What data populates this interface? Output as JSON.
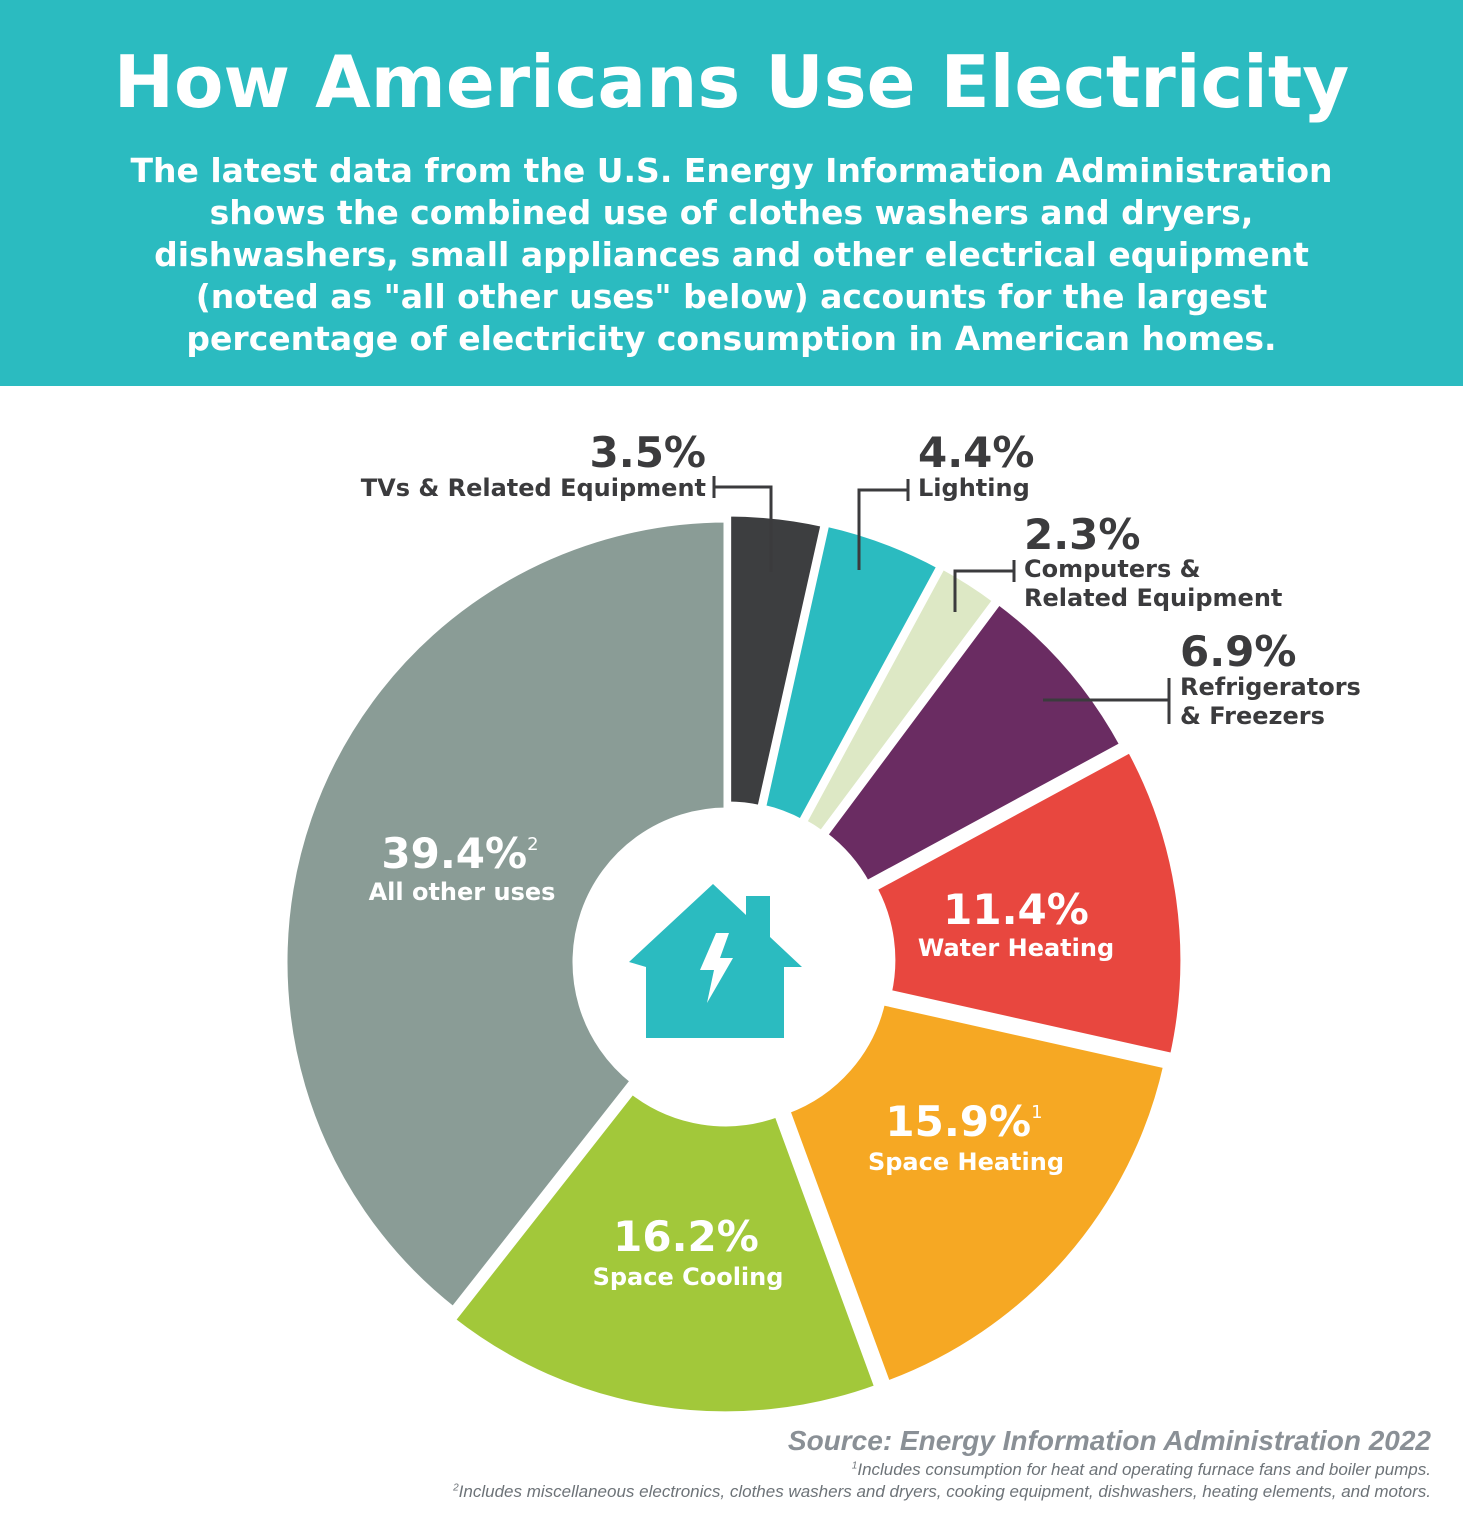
{
  "header": {
    "title": "How Americans Use Electricity",
    "subtitle_lines": [
      "The latest data from the U.S. Energy Information Administration",
      "shows the combined use of clothes washers and dryers,",
      "dishwashers, small appliances and other electrical equipment",
      "(noted as \"all other uses\" below) accounts for the largest",
      "percentage of electricity consumption in American homes."
    ]
  },
  "center_icon": "house-lightning-icon",
  "colors": {
    "header": "#2bbbc0",
    "tvs": "#3d3e40",
    "lighting": "#2bbbc0",
    "computers": "#dde8c5",
    "refrigerators": "#6a2c62",
    "water_heating": "#e8473f",
    "space_heating": "#f6a823",
    "space_cooling": "#a2c83a",
    "all_other": "#8a9c96"
  },
  "chart_data": {
    "type": "pie",
    "donut": true,
    "slices": [
      {
        "key": "tvs",
        "label": "TVs & Related Equipment",
        "value": 3.5,
        "value_text": "3.5%",
        "footnote": "",
        "color": "#3d3e40"
      },
      {
        "key": "lighting",
        "label": "Lighting",
        "value": 4.4,
        "value_text": "4.4%",
        "footnote": "",
        "color": "#2bbbc0"
      },
      {
        "key": "computers",
        "label": "Computers & Related Equipment",
        "label_lines": [
          "Computers &",
          "Related Equipment"
        ],
        "value": 2.3,
        "value_text": "2.3%",
        "footnote": "",
        "color": "#dde8c5"
      },
      {
        "key": "refrigerators",
        "label": "Refrigerators & Freezers",
        "label_lines": [
          "Refrigerators",
          "& Freezers"
        ],
        "value": 6.9,
        "value_text": "6.9%",
        "footnote": "",
        "color": "#6a2c62"
      },
      {
        "key": "water_heating",
        "label": "Water Heating",
        "value": 11.4,
        "value_text": "11.4%",
        "footnote": "",
        "color": "#e8473f"
      },
      {
        "key": "space_heating",
        "label": "Space Heating",
        "value": 15.9,
        "value_text": "15.9%",
        "footnote": "1",
        "color": "#f6a823"
      },
      {
        "key": "space_cooling",
        "label": "Space Cooling",
        "value": 16.2,
        "value_text": "16.2%",
        "footnote": "",
        "color": "#a2c83a"
      },
      {
        "key": "all_other",
        "label": "All other uses",
        "value": 39.4,
        "value_text": "39.4%",
        "footnote": "2",
        "color": "#8a9c96"
      }
    ]
  },
  "source": {
    "text": "Source: Energy Information Administration 2022",
    "footnote1": "Includes consumption for heat and operating furnace fans and boiler pumps.",
    "footnote2": "Includes miscellaneous electronics, clothes washers and dryers, cooking equipment, dishwashers, heating elements, and motors."
  }
}
